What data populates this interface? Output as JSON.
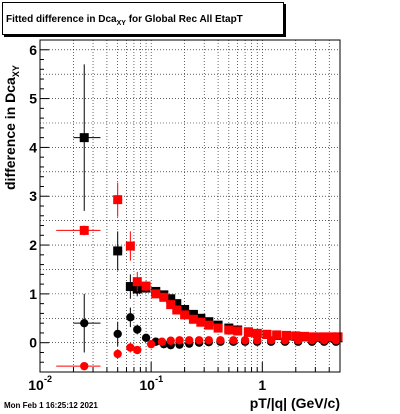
{
  "title": {
    "text": "Fitted difference in Dca",
    "sub": "XY",
    "rest": " for Global Rec All EtapT"
  },
  "ylabel": {
    "text": "difference in Dca",
    "sub": "XY"
  },
  "xlabel": "pT/|q| (GeV/c)",
  "datestamp": "Mon Feb  1 16:25:12 2021",
  "chart_data": {
    "type": "scatter",
    "xscale": "log",
    "xlim": [
      0.01,
      5.0
    ],
    "ylim": [
      -0.6,
      6.2
    ],
    "grid": true,
    "x_tick_labels": [
      "10",
      "10",
      "1"
    ],
    "x_tick_exponents": [
      "-2",
      "-1",
      ""
    ],
    "y_tick_labels": [
      "0",
      "1",
      "2",
      "3",
      "4",
      "5",
      "6"
    ],
    "series": [
      {
        "marker": "square",
        "color": "#000000",
        "points": [
          {
            "x": 0.025,
            "y": 4.2,
            "xerr": [
              0.005,
              0.01
            ],
            "yerr": 1.5
          },
          {
            "x": 0.05,
            "y": 1.88,
            "xerr": [
              0.004,
              0.005
            ],
            "yerr": 0.4
          },
          {
            "x": 0.065,
            "y": 1.15,
            "yerr": 0.25
          },
          {
            "x": 0.075,
            "y": 1.1,
            "yerr": 0.15
          },
          {
            "x": 0.09,
            "y": 1.12,
            "yerr": 0.1
          },
          {
            "x": 0.11,
            "y": 1.05
          },
          {
            "x": 0.13,
            "y": 0.98
          },
          {
            "x": 0.15,
            "y": 0.9
          },
          {
            "x": 0.17,
            "y": 0.8
          },
          {
            "x": 0.2,
            "y": 0.68
          },
          {
            "x": 0.24,
            "y": 0.58
          },
          {
            "x": 0.28,
            "y": 0.5
          },
          {
            "x": 0.33,
            "y": 0.43
          },
          {
            "x": 0.4,
            "y": 0.36
          },
          {
            "x": 0.5,
            "y": 0.3
          },
          {
            "x": 0.6,
            "y": 0.26
          },
          {
            "x": 0.75,
            "y": 0.22
          },
          {
            "x": 0.9,
            "y": 0.19
          },
          {
            "x": 1.1,
            "y": 0.17
          },
          {
            "x": 1.35,
            "y": 0.15
          },
          {
            "x": 1.65,
            "y": 0.14
          },
          {
            "x": 2.0,
            "y": 0.13
          },
          {
            "x": 2.4,
            "y": 0.12
          },
          {
            "x": 2.9,
            "y": 0.11
          },
          {
            "x": 3.5,
            "y": 0.1
          },
          {
            "x": 4.2,
            "y": 0.1
          },
          {
            "x": 4.8,
            "y": 0.1
          }
        ]
      },
      {
        "marker": "circle",
        "color": "#000000",
        "points": [
          {
            "x": 0.025,
            "y": 0.4,
            "xerr": [
              0.005,
              0.01
            ],
            "yerr": 0.6
          },
          {
            "x": 0.05,
            "y": 0.18,
            "yerr": 0.25
          },
          {
            "x": 0.065,
            "y": 0.52,
            "yerr": 0.2
          },
          {
            "x": 0.075,
            "y": 0.27,
            "yerr": 0.1
          },
          {
            "x": 0.09,
            "y": 0.1
          },
          {
            "x": 0.11,
            "y": 0.02
          },
          {
            "x": 0.13,
            "y": -0.03
          },
          {
            "x": 0.15,
            "y": -0.05
          },
          {
            "x": 0.18,
            "y": -0.04
          },
          {
            "x": 0.22,
            "y": -0.02
          },
          {
            "x": 0.27,
            "y": 0.0
          },
          {
            "x": 0.33,
            "y": 0.01
          },
          {
            "x": 0.42,
            "y": 0.02
          },
          {
            "x": 0.55,
            "y": 0.02
          },
          {
            "x": 0.7,
            "y": 0.02
          },
          {
            "x": 0.9,
            "y": 0.02
          },
          {
            "x": 1.2,
            "y": 0.02
          },
          {
            "x": 1.6,
            "y": 0.02
          },
          {
            "x": 2.1,
            "y": 0.02
          },
          {
            "x": 2.8,
            "y": 0.02
          },
          {
            "x": 3.6,
            "y": 0.02
          },
          {
            "x": 4.6,
            "y": 0.02
          }
        ]
      },
      {
        "marker": "square",
        "color": "#ff0000",
        "points": [
          {
            "x": 0.025,
            "y": 2.3,
            "xerr": [
              0.011,
              0.01
            ],
            "yerr": 0.1
          },
          {
            "x": 0.05,
            "y": 2.93,
            "xerr": [
              0.004,
              0.005
            ],
            "yerr": 0.35
          },
          {
            "x": 0.065,
            "y": 1.98,
            "yerr": 0.3
          },
          {
            "x": 0.075,
            "y": 1.25,
            "yerr": 0.2
          },
          {
            "x": 0.09,
            "y": 1.16,
            "yerr": 0.1
          },
          {
            "x": 0.11,
            "y": 1.0
          },
          {
            "x": 0.13,
            "y": 0.93
          },
          {
            "x": 0.15,
            "y": 0.78
          },
          {
            "x": 0.17,
            "y": 0.67
          },
          {
            "x": 0.2,
            "y": 0.57
          },
          {
            "x": 0.24,
            "y": 0.48
          },
          {
            "x": 0.28,
            "y": 0.42
          },
          {
            "x": 0.33,
            "y": 0.36
          },
          {
            "x": 0.4,
            "y": 0.3
          },
          {
            "x": 0.5,
            "y": 0.26
          },
          {
            "x": 0.6,
            "y": 0.24
          },
          {
            "x": 0.75,
            "y": 0.21
          },
          {
            "x": 0.9,
            "y": 0.19
          },
          {
            "x": 1.1,
            "y": 0.17
          },
          {
            "x": 1.35,
            "y": 0.16
          },
          {
            "x": 1.65,
            "y": 0.15
          },
          {
            "x": 2.0,
            "y": 0.14
          },
          {
            "x": 2.4,
            "y": 0.13
          },
          {
            "x": 2.9,
            "y": 0.12
          },
          {
            "x": 3.5,
            "y": 0.12
          },
          {
            "x": 4.2,
            "y": 0.12
          },
          {
            "x": 4.8,
            "y": 0.12
          }
        ]
      },
      {
        "marker": "circle",
        "color": "#ff0000",
        "points": [
          {
            "x": 0.025,
            "y": -0.48,
            "xerr": [
              0.011,
              0.01
            ]
          },
          {
            "x": 0.05,
            "y": -0.23,
            "yerr": 0.1
          },
          {
            "x": 0.065,
            "y": -0.1,
            "yerr": 0.1
          },
          {
            "x": 0.075,
            "y": -0.15
          },
          {
            "x": 0.1,
            "y": -0.03
          },
          {
            "x": 0.125,
            "y": 0.02
          },
          {
            "x": 0.15,
            "y": 0.04
          },
          {
            "x": 0.18,
            "y": 0.05
          },
          {
            "x": 0.22,
            "y": 0.05
          },
          {
            "x": 0.27,
            "y": 0.05
          },
          {
            "x": 0.33,
            "y": 0.05
          },
          {
            "x": 0.42,
            "y": 0.05
          },
          {
            "x": 0.55,
            "y": 0.05
          },
          {
            "x": 0.7,
            "y": 0.05
          },
          {
            "x": 0.9,
            "y": 0.05
          },
          {
            "x": 1.2,
            "y": 0.05
          },
          {
            "x": 1.6,
            "y": 0.05
          },
          {
            "x": 2.1,
            "y": 0.05
          },
          {
            "x": 2.8,
            "y": 0.05
          },
          {
            "x": 3.6,
            "y": 0.05
          },
          {
            "x": 4.6,
            "y": 0.05
          }
        ]
      }
    ]
  }
}
